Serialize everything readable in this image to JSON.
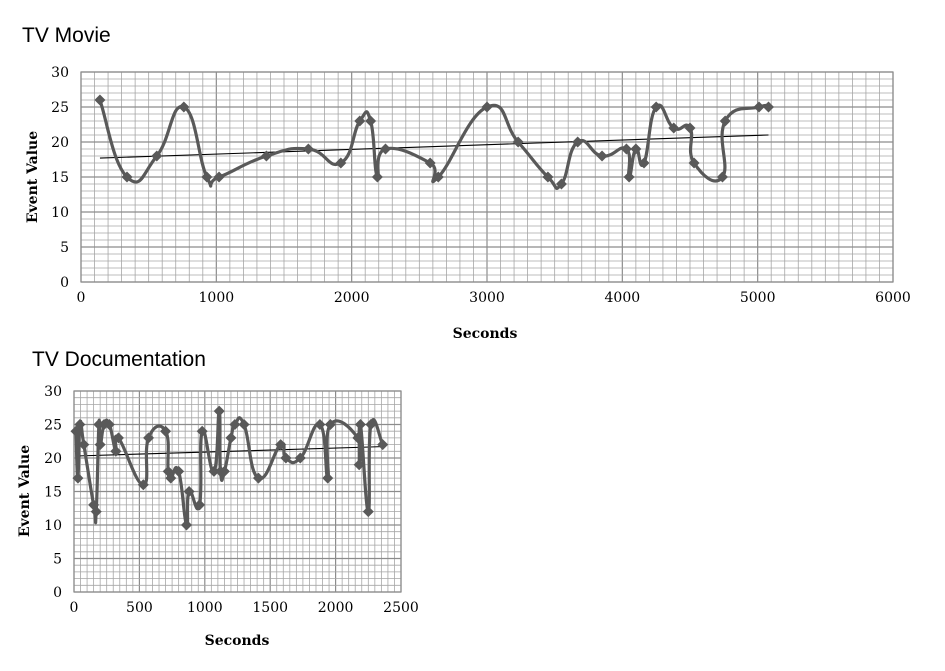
{
  "chart_data": [
    {
      "type": "line",
      "title": "TV Movie",
      "xlabel": "Seconds",
      "ylabel": "Event Value",
      "xlim": [
        0,
        6000
      ],
      "ylim": [
        0,
        30
      ],
      "xticks": [
        0,
        1000,
        2000,
        3000,
        4000,
        5000,
        6000
      ],
      "yticks": [
        0,
        5,
        10,
        15,
        20,
        25,
        30
      ],
      "grid": true,
      "series": [
        {
          "name": "Event Value",
          "x": [
            140,
            340,
            560,
            760,
            930,
            1020,
            1370,
            1680,
            1920,
            2060,
            2140,
            2190,
            2250,
            2580,
            2640,
            3000,
            3230,
            3450,
            3550,
            3670,
            3850,
            4030,
            4050,
            4100,
            4160,
            4250,
            4380,
            4500,
            4530,
            4740,
            4760,
            5010,
            5080
          ],
          "values": [
            26,
            15,
            18,
            25,
            15,
            15,
            18,
            19,
            17,
            23,
            23,
            15,
            19,
            17,
            15,
            25,
            20,
            15,
            14,
            20,
            18,
            19,
            15,
            19,
            17,
            25,
            22,
            22,
            17,
            15,
            23,
            25,
            25
          ]
        }
      ],
      "trendline": {
        "x": [
          140,
          5080
        ],
        "y": [
          17.7,
          21.0
        ]
      },
      "color": "#595959",
      "trend_color": "#000000",
      "grid_color": "#a6a6a6"
    },
    {
      "type": "line",
      "title": "TV Documentation",
      "xlabel": "Seconds",
      "ylabel": "Event Value",
      "xlim": [
        0,
        2500
      ],
      "ylim": [
        0,
        30
      ],
      "xticks": [
        0,
        500,
        1000,
        1500,
        2000,
        2500
      ],
      "yticks": [
        0,
        5,
        10,
        15,
        20,
        25,
        30
      ],
      "grid": true,
      "series": [
        {
          "name": "Event Value",
          "x": [
            15,
            30,
            45,
            75,
            150,
            170,
            190,
            200,
            230,
            270,
            320,
            340,
            530,
            570,
            700,
            720,
            740,
            800,
            860,
            880,
            960,
            980,
            1070,
            1110,
            1120,
            1150,
            1200,
            1230,
            1300,
            1410,
            1580,
            1620,
            1730,
            1880,
            1940,
            1960,
            2170,
            2180,
            2190,
            2250,
            2270,
            2360
          ],
          "values": [
            24,
            17,
            25,
            22,
            13,
            12,
            25,
            22,
            25,
            25,
            21,
            23,
            16,
            23,
            24,
            18,
            17,
            18,
            10,
            15,
            13,
            24,
            18,
            27,
            18,
            18,
            23,
            25,
            25,
            17,
            22,
            20,
            20,
            25,
            17,
            25,
            23,
            19,
            25,
            12,
            25,
            22
          ]
        }
      ],
      "trendline": {
        "x": [
          15,
          2360
        ],
        "y": [
          20.3,
          21.7
        ]
      },
      "color": "#595959",
      "trend_color": "#000000",
      "grid_color": "#a6a6a6"
    }
  ]
}
